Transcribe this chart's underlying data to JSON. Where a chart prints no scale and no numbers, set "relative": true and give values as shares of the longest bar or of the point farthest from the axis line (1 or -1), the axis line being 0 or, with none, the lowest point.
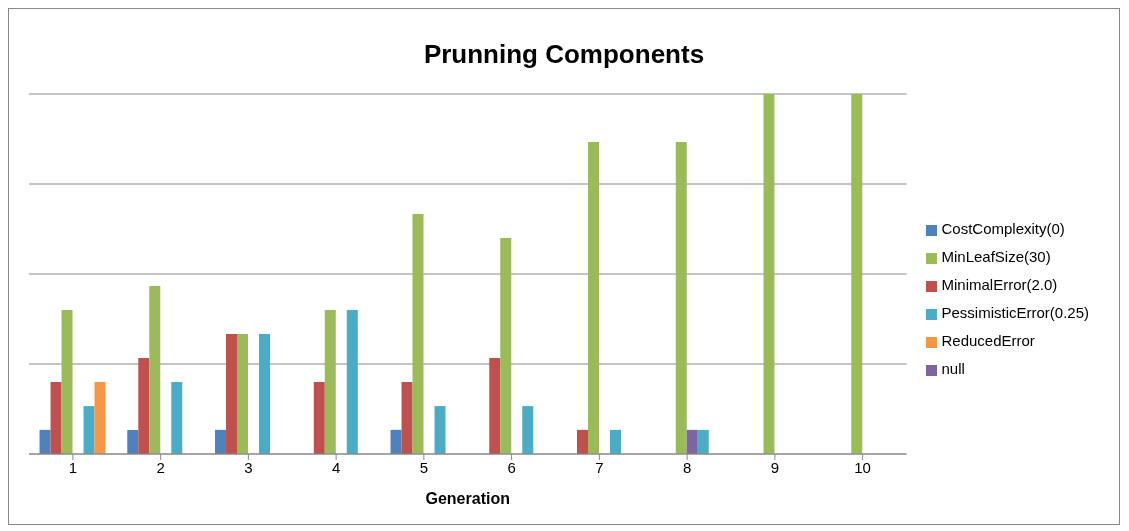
{
  "chart_data": {
    "type": "bar",
    "title": "Prunning Components",
    "xlabel": "Generation",
    "relative": true,
    "grid": "y",
    "legend": "right",
    "categories": [
      "1",
      "2",
      "3",
      "4",
      "5",
      "6",
      "7",
      "8",
      "9",
      "10"
    ],
    "series": [
      {
        "name": "CostComplexity(0)",
        "color": "#4f81bd",
        "values": [
          0.067,
          0.067,
          0.067,
          0,
          0.067,
          0,
          0,
          0,
          0,
          0
        ]
      },
      {
        "name": "MinimalError(2.0)",
        "color": "#c0504d",
        "values": [
          0.2,
          0.267,
          0.333,
          0.2,
          0.2,
          0.267,
          0.067,
          0,
          0,
          0
        ]
      },
      {
        "name": "MinLeafSize(30)",
        "color": "#9bbb59",
        "values": [
          0.4,
          0.467,
          0.333,
          0.4,
          0.667,
          0.6,
          0.867,
          0.867,
          1,
          1
        ]
      },
      {
        "name": "null",
        "color": "#8064a2",
        "values": [
          0,
          0,
          0,
          0,
          0,
          0,
          0,
          0.067,
          0,
          0
        ]
      },
      {
        "name": "PessimisticError(0.25)",
        "color": "#4bacc6",
        "values": [
          0.133,
          0.2,
          0.333,
          0.4,
          0.133,
          0.133,
          0.067,
          0.067,
          0,
          0
        ]
      },
      {
        "name": "ReducedError",
        "color": "#f79646",
        "values": [
          0.2,
          0,
          0,
          0,
          0,
          0,
          0,
          0,
          0,
          0
        ]
      }
    ]
  }
}
